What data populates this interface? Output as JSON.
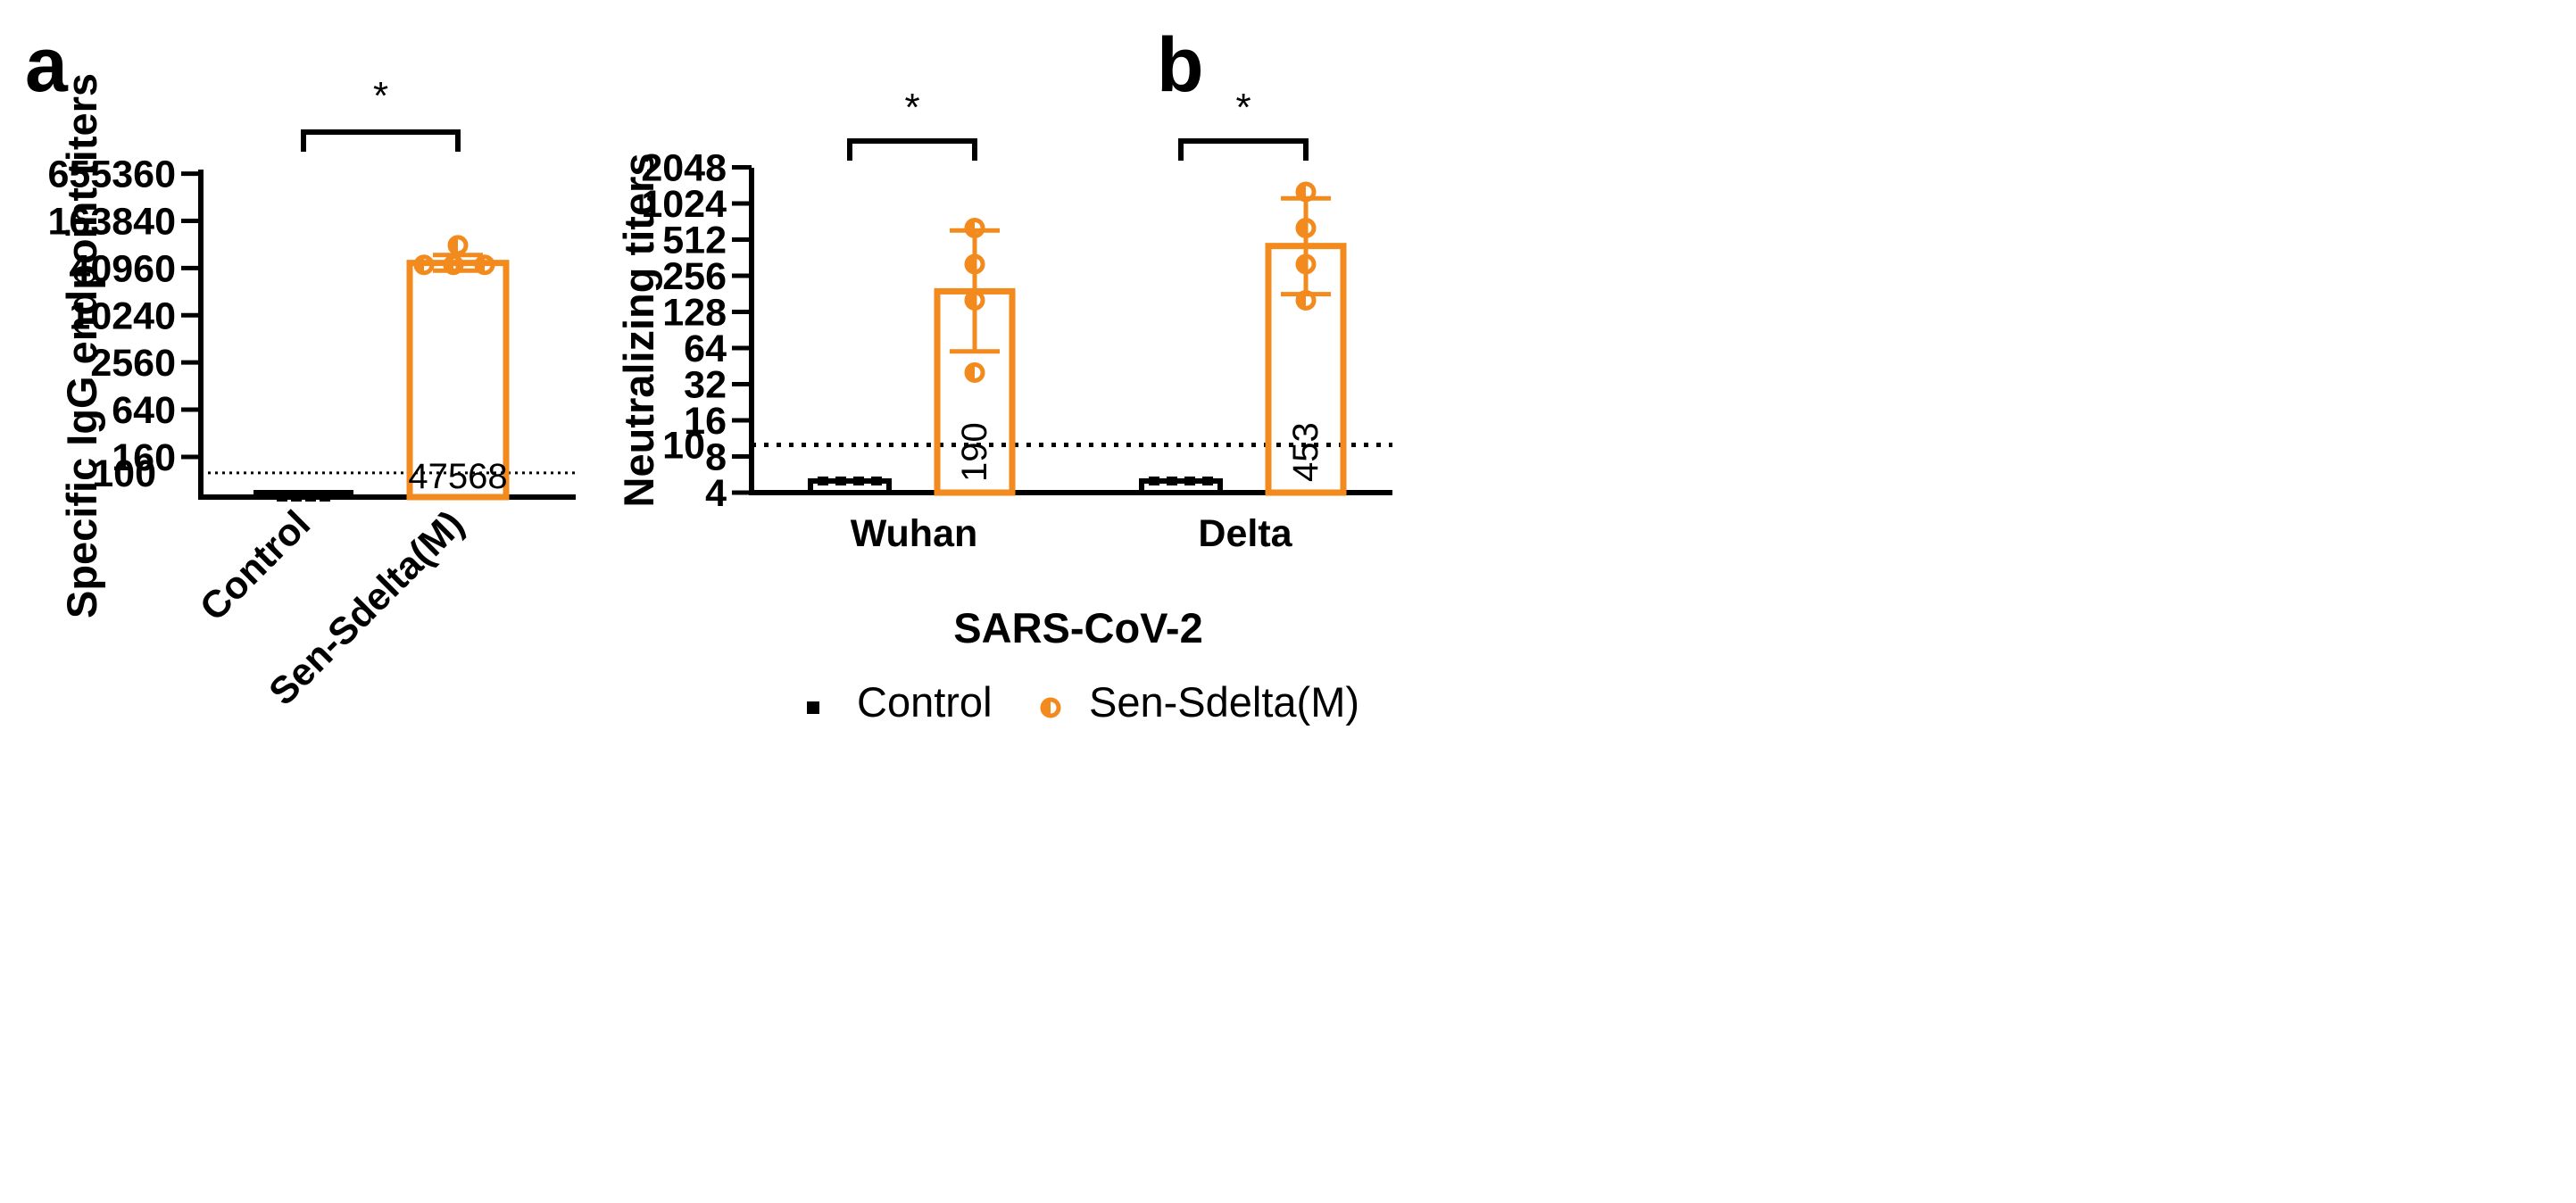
{
  "colors": {
    "control": "#000000",
    "vaccine": "#F28A1E",
    "axis": "#000000"
  },
  "chart_data": [
    {
      "panel": "a",
      "type": "bar",
      "yscale": "log",
      "ylabel": "Specific IgG endpoint titers",
      "ylim": [
        40,
        655360
      ],
      "ytick_values": [
        160,
        640,
        2560,
        10240,
        40960,
        163840,
        655360
      ],
      "ytick_labels": [
        "160",
        "640",
        "2560",
        "10240",
        "40960",
        "163840",
        "655360"
      ],
      "threshold": {
        "value": 100,
        "label": "100"
      },
      "categories": [
        "Control",
        "Sen-Sdelta(M)"
      ],
      "bars": [
        {
          "category": "Control",
          "value": 50,
          "points": [
            50,
            50,
            50,
            50
          ],
          "error": [
            50,
            50
          ],
          "bar_label": ""
        },
        {
          "category": "Sen-Sdelta(M)",
          "value": 47568,
          "points": [
            80000,
            45000,
            45000,
            45000
          ],
          "error": [
            38000,
            60000
          ],
          "bar_label": "47568"
        }
      ],
      "significance": [
        {
          "from": "Control",
          "to": "Sen-Sdelta(M)",
          "label": "*"
        }
      ]
    },
    {
      "panel": "b",
      "type": "bar",
      "yscale": "log2",
      "ylabel": "Neutralizing titers",
      "xlabel": "SARS-CoV-2",
      "ylim": [
        4,
        2048
      ],
      "ytick_values": [
        4,
        8,
        16,
        32,
        64,
        128,
        256,
        512,
        1024,
        2048
      ],
      "ytick_labels": [
        "4",
        "8",
        "16",
        "32",
        "64",
        "128",
        "256",
        "512",
        "1024",
        "2048"
      ],
      "threshold": {
        "value": 10,
        "label": "10"
      },
      "groups": [
        "Wuhan",
        "Delta"
      ],
      "series": [
        {
          "name": "Control",
          "values": [
            5,
            5
          ],
          "points": [
            [
              5,
              5,
              5,
              5
            ],
            [
              5,
              5,
              5,
              5
            ]
          ],
          "bar_labels": [
            "",
            ""
          ]
        },
        {
          "name": "Sen-Sdelta(M)",
          "values": [
            190,
            453
          ],
          "points": [
            [
              640,
              320,
              160,
              40
            ],
            [
              1280,
              640,
              320,
              160
            ]
          ],
          "error": [
            [
              60,
              610
            ],
            [
              180,
              1130
            ]
          ],
          "bar_labels": [
            "190",
            "453"
          ]
        }
      ],
      "significance": [
        {
          "group": "Wuhan",
          "label": "*"
        },
        {
          "group": "Delta",
          "label": "*"
        }
      ],
      "legend": [
        {
          "name": "Control",
          "marker": "square"
        },
        {
          "name": "Sen-Sdelta(M)",
          "marker": "half-filled-circle"
        }
      ]
    }
  ]
}
